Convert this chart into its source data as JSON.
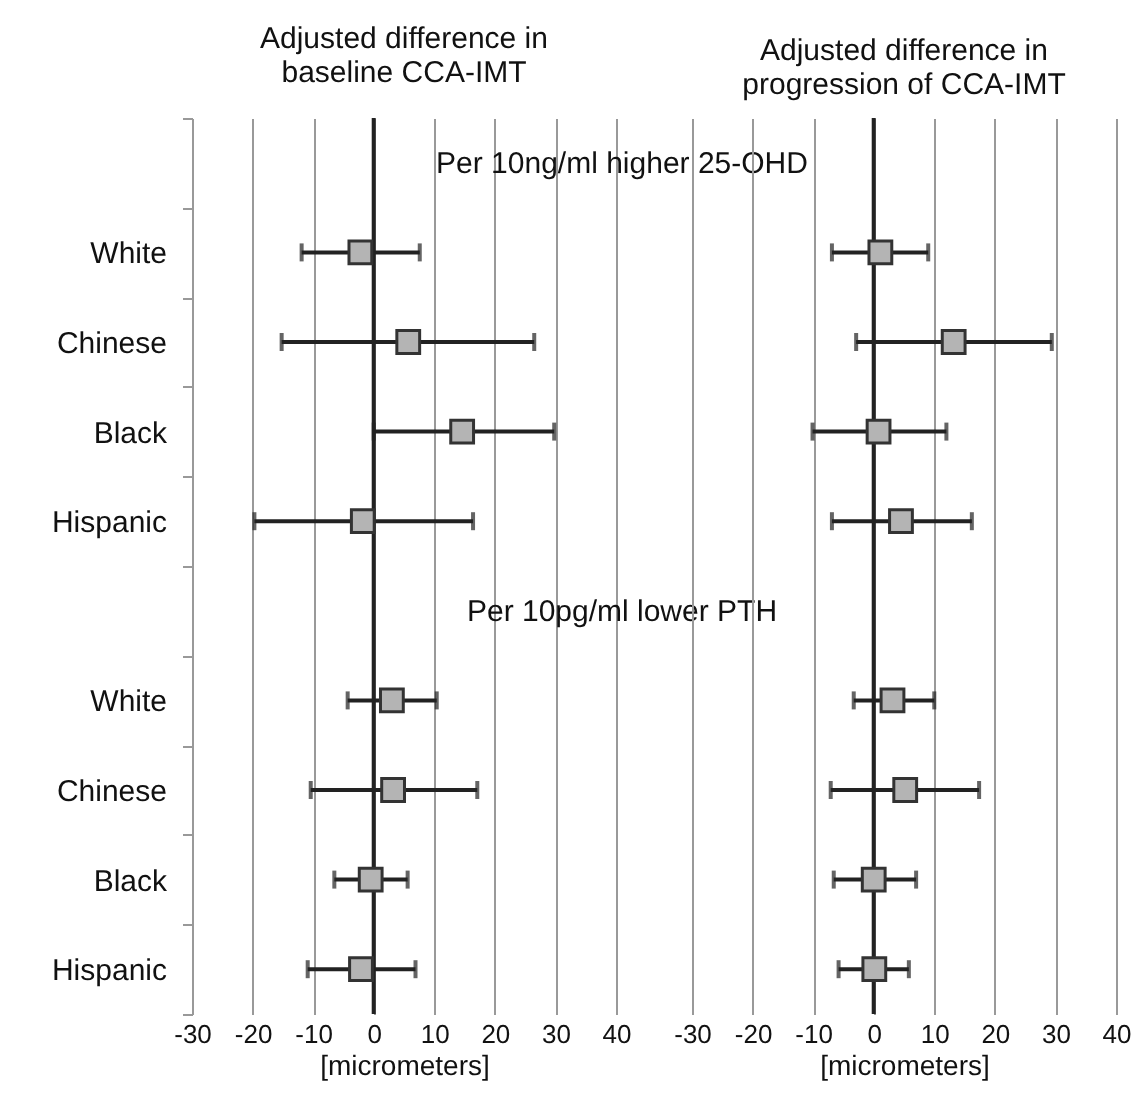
{
  "chart_data": [
    {
      "type": "scatter",
      "orientation": "horizontal",
      "title": "Adjusted difference in baseline CCA-IMT",
      "xlabel": "[micrometers]",
      "categories": [
        null,
        "White",
        "Chinese",
        "Black",
        "Hispanic",
        null,
        "White",
        "Chinese",
        "Black",
        "Hispanic"
      ],
      "values": [
        null,
        -2.2,
        5.7,
        14.6,
        -1.8,
        null,
        3.0,
        3.2,
        -0.5,
        -2.1
      ],
      "errors": [
        null,
        [
          -11.9,
          7.6
        ],
        [
          -15.2,
          26.5
        ],
        [
          0,
          29.8
        ],
        [
          -19.7,
          16.4
        ],
        null,
        [
          -4.3,
          10.4
        ],
        [
          -10.4,
          17.1
        ],
        [
          -6.5,
          5.6
        ],
        [
          -10.9,
          6.9
        ]
      ],
      "color": "#b4b4b4",
      "marker": "square",
      "xlim": [
        -30,
        40
      ],
      "xticks": [
        -30,
        -20,
        -10,
        0,
        10,
        20,
        30,
        40
      ],
      "grid": "x",
      "ref_lines": [
        {
          "axis": "x",
          "value": 0,
          "color": "#222222"
        }
      ],
      "annotations": [
        "Per 10ng/ml higher 25-OHD",
        "Per 10pg/ml lower PTH"
      ]
    },
    {
      "type": "scatter",
      "orientation": "horizontal",
      "title": "Adjusted difference in progression of CCA-IMT",
      "xlabel": "[micrometers]",
      "categories": [
        null,
        null,
        null,
        null,
        null,
        null,
        null,
        null,
        null,
        null
      ],
      "values": [
        null,
        1.1,
        13.2,
        0.8,
        4.5,
        null,
        3.1,
        5.2,
        0.0,
        0.1
      ],
      "errors": [
        null,
        [
          -6.9,
          9.0
        ],
        [
          -2.9,
          29.4
        ],
        [
          -10.1,
          12.0
        ],
        [
          -6.9,
          16.2
        ],
        null,
        [
          -3.3,
          10.0
        ],
        [
          -7.1,
          17.4
        ],
        [
          -6.6,
          7.0
        ],
        [
          -5.8,
          5.8
        ]
      ],
      "color": "#b4b4b4",
      "marker": "square",
      "xlim": [
        -30,
        40
      ],
      "xticks": [
        -30,
        -20,
        -10,
        0,
        10,
        20,
        30,
        40
      ],
      "grid": "x",
      "tick_labels": "x",
      "ref_lines": [
        {
          "axis": "x",
          "value": 0,
          "color": "#222222"
        }
      ]
    }
  ]
}
